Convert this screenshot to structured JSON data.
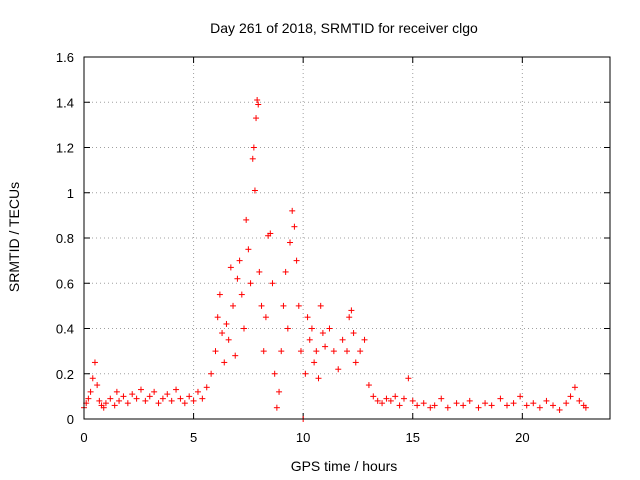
{
  "chart_data": {
    "type": "scatter",
    "title": "Day 261 of 2018, SRMTID for receiver clgo",
    "xlabel": "GPS time / hours",
    "ylabel": "SRMTID / TECUs",
    "xlim": [
      0,
      24
    ],
    "ylim": [
      0,
      1.6
    ],
    "xticks": [
      0,
      5,
      10,
      15,
      20
    ],
    "yticks": [
      0,
      0.2,
      0.4,
      0.6,
      0.8,
      1,
      1.2,
      1.4,
      1.6
    ],
    "xtick_labels": [
      "0",
      "5",
      "10",
      "15",
      "20"
    ],
    "ytick_labels": [
      "0",
      "0.2",
      "0.4",
      "0.6",
      "0.8",
      "1",
      "1.2",
      "1.4",
      "1.6"
    ],
    "grid": true,
    "marker": "+",
    "color": "#ff0000",
    "series": [
      {
        "name": "SRMTID",
        "points": [
          [
            0.0,
            0.05
          ],
          [
            0.1,
            0.07
          ],
          [
            0.2,
            0.09
          ],
          [
            0.3,
            0.12
          ],
          [
            0.4,
            0.18
          ],
          [
            0.5,
            0.25
          ],
          [
            0.6,
            0.15
          ],
          [
            0.7,
            0.08
          ],
          [
            0.8,
            0.06
          ],
          [
            0.9,
            0.05
          ],
          [
            1.0,
            0.07
          ],
          [
            1.2,
            0.09
          ],
          [
            1.4,
            0.06
          ],
          [
            1.5,
            0.12
          ],
          [
            1.6,
            0.08
          ],
          [
            1.8,
            0.1
          ],
          [
            2.0,
            0.07
          ],
          [
            2.2,
            0.11
          ],
          [
            2.4,
            0.09
          ],
          [
            2.6,
            0.13
          ],
          [
            2.8,
            0.08
          ],
          [
            3.0,
            0.1
          ],
          [
            3.2,
            0.12
          ],
          [
            3.4,
            0.07
          ],
          [
            3.6,
            0.09
          ],
          [
            3.8,
            0.11
          ],
          [
            4.0,
            0.08
          ],
          [
            4.2,
            0.13
          ],
          [
            4.4,
            0.09
          ],
          [
            4.6,
            0.07
          ],
          [
            4.8,
            0.1
          ],
          [
            5.0,
            0.08
          ],
          [
            5.2,
            0.12
          ],
          [
            5.4,
            0.09
          ],
          [
            5.6,
            0.14
          ],
          [
            5.8,
            0.2
          ],
          [
            6.0,
            0.3
          ],
          [
            6.1,
            0.45
          ],
          [
            6.2,
            0.55
          ],
          [
            6.3,
            0.38
          ],
          [
            6.4,
            0.25
          ],
          [
            6.5,
            0.42
          ],
          [
            6.6,
            0.35
          ],
          [
            6.7,
            0.67
          ],
          [
            6.8,
            0.5
          ],
          [
            6.9,
            0.28
          ],
          [
            7.0,
            0.62
          ],
          [
            7.1,
            0.7
          ],
          [
            7.2,
            0.55
          ],
          [
            7.3,
            0.4
          ],
          [
            7.4,
            0.88
          ],
          [
            7.5,
            0.75
          ],
          [
            7.6,
            0.6
          ],
          [
            7.7,
            1.15
          ],
          [
            7.75,
            1.2
          ],
          [
            7.8,
            1.01
          ],
          [
            7.85,
            1.33
          ],
          [
            7.9,
            1.41
          ],
          [
            7.95,
            1.39
          ],
          [
            8.0,
            0.65
          ],
          [
            8.1,
            0.5
          ],
          [
            8.2,
            0.3
          ],
          [
            8.3,
            0.45
          ],
          [
            8.4,
            0.81
          ],
          [
            8.5,
            0.82
          ],
          [
            8.6,
            0.6
          ],
          [
            8.7,
            0.2
          ],
          [
            8.8,
            0.05
          ],
          [
            8.9,
            0.12
          ],
          [
            9.0,
            0.3
          ],
          [
            9.1,
            0.5
          ],
          [
            9.2,
            0.65
          ],
          [
            9.3,
            0.4
          ],
          [
            9.4,
            0.78
          ],
          [
            9.5,
            0.92
          ],
          [
            9.6,
            0.85
          ],
          [
            9.7,
            0.7
          ],
          [
            9.8,
            0.5
          ],
          [
            9.9,
            0.3
          ],
          [
            10.0,
            0.0
          ],
          [
            10.1,
            0.2
          ],
          [
            10.2,
            0.45
          ],
          [
            10.3,
            0.35
          ],
          [
            10.4,
            0.4
          ],
          [
            10.5,
            0.25
          ],
          [
            10.6,
            0.3
          ],
          [
            10.7,
            0.18
          ],
          [
            10.8,
            0.5
          ],
          [
            10.9,
            0.38
          ],
          [
            11.0,
            0.32
          ],
          [
            11.2,
            0.4
          ],
          [
            11.4,
            0.3
          ],
          [
            11.6,
            0.22
          ],
          [
            11.8,
            0.35
          ],
          [
            12.0,
            0.3
          ],
          [
            12.1,
            0.45
          ],
          [
            12.2,
            0.48
          ],
          [
            12.3,
            0.38
          ],
          [
            12.4,
            0.25
          ],
          [
            12.6,
            0.3
          ],
          [
            12.8,
            0.35
          ],
          [
            13.0,
            0.15
          ],
          [
            13.2,
            0.1
          ],
          [
            13.4,
            0.08
          ],
          [
            13.6,
            0.07
          ],
          [
            13.8,
            0.09
          ],
          [
            14.0,
            0.08
          ],
          [
            14.2,
            0.1
          ],
          [
            14.4,
            0.06
          ],
          [
            14.6,
            0.09
          ],
          [
            14.8,
            0.18
          ],
          [
            15.0,
            0.08
          ],
          [
            15.2,
            0.06
          ],
          [
            15.5,
            0.07
          ],
          [
            15.8,
            0.05
          ],
          [
            16.0,
            0.06
          ],
          [
            16.3,
            0.09
          ],
          [
            16.6,
            0.05
          ],
          [
            17.0,
            0.07
          ],
          [
            17.3,
            0.06
          ],
          [
            17.6,
            0.08
          ],
          [
            18.0,
            0.05
          ],
          [
            18.3,
            0.07
          ],
          [
            18.6,
            0.06
          ],
          [
            19.0,
            0.09
          ],
          [
            19.3,
            0.06
          ],
          [
            19.6,
            0.07
          ],
          [
            19.9,
            0.1
          ],
          [
            20.2,
            0.06
          ],
          [
            20.5,
            0.07
          ],
          [
            20.8,
            0.05
          ],
          [
            21.1,
            0.08
          ],
          [
            21.4,
            0.06
          ],
          [
            21.7,
            0.04
          ],
          [
            22.0,
            0.07
          ],
          [
            22.2,
            0.1
          ],
          [
            22.4,
            0.14
          ],
          [
            22.6,
            0.08
          ],
          [
            22.8,
            0.06
          ],
          [
            22.9,
            0.05
          ]
        ]
      }
    ]
  }
}
